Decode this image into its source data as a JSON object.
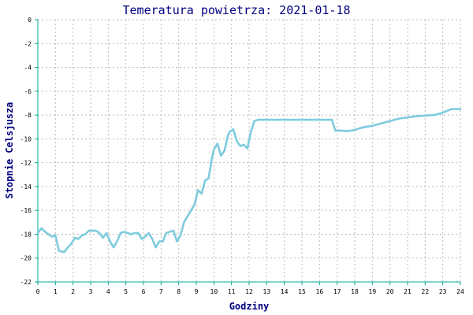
{
  "chart_data": {
    "type": "line",
    "title": "Temeratura powietrza: 2021-01-18",
    "xlabel": "Godziny",
    "ylabel": "Stopnie Celsjusza",
    "xlim": [
      0,
      24
    ],
    "ylim": [
      -22,
      0
    ],
    "x_ticks": [
      0,
      1,
      2,
      3,
      4,
      5,
      6,
      7,
      8,
      9,
      10,
      11,
      12,
      13,
      14,
      15,
      16,
      17,
      18,
      19,
      20,
      21,
      22,
      23,
      24
    ],
    "y_ticks": [
      0,
      -2,
      -4,
      -6,
      -8,
      -10,
      -12,
      -14,
      -16,
      -18,
      -20,
      -22
    ],
    "grid": true,
    "line_color": "#7ecbdf",
    "axis_color": "#00a89a",
    "title_color": "#000080",
    "series": [
      {
        "x": [
          0,
          0.2,
          0.5,
          0.8,
          1.0,
          1.2,
          1.5,
          1.7,
          1.9,
          2.1,
          2.3,
          2.5,
          2.7,
          2.9,
          3.1,
          3.3,
          3.5,
          3.7,
          3.9,
          4.1,
          4.3,
          4.5,
          4.7,
          4.9,
          5.1,
          5.3,
          5.5,
          5.7,
          5.9,
          6.1,
          6.3,
          6.5,
          6.7,
          6.9,
          7.1,
          7.3,
          7.5,
          7.7,
          7.9,
          8.1,
          8.3,
          8.5,
          8.7,
          8.9,
          9.1,
          9.3,
          9.5,
          9.7,
          9.9,
          10.0,
          10.2,
          10.4,
          10.6,
          10.8,
          10.9,
          11.1,
          11.3,
          11.5,
          11.7,
          11.9,
          12.1,
          12.3,
          12.5,
          12.7,
          12.9,
          13.0,
          13.5,
          14,
          15,
          16,
          16.5,
          16.7,
          16.9,
          17.2,
          17.5,
          17.8,
          18,
          18.3,
          18.6,
          19,
          19.5,
          20,
          20.5,
          21,
          21.5,
          22,
          22.5,
          23,
          23.5,
          24
        ],
        "y": [
          -17.9,
          -17.5,
          -17.9,
          -18.2,
          -18.1,
          -19.4,
          -19.5,
          -19.1,
          -18.8,
          -18.3,
          -18.4,
          -18.1,
          -18.0,
          -17.7,
          -17.7,
          -17.7,
          -17.9,
          -18.3,
          -17.9,
          -18.6,
          -19.1,
          -18.6,
          -17.9,
          -17.8,
          -17.9,
          -18.0,
          -17.9,
          -17.9,
          -18.4,
          -18.2,
          -17.9,
          -18.4,
          -19.1,
          -18.6,
          -18.6,
          -17.9,
          -17.8,
          -17.7,
          -18.6,
          -18.1,
          -17.0,
          -16.5,
          -16.0,
          -15.5,
          -14.3,
          -14.6,
          -13.5,
          -13.3,
          -11.5,
          -10.9,
          -10.4,
          -11.4,
          -11.0,
          -9.7,
          -9.4,
          -9.2,
          -10.2,
          -10.6,
          -10.5,
          -10.8,
          -9.4,
          -8.5,
          -8.4,
          -8.4,
          -8.4,
          -8.4,
          -8.4,
          -8.4,
          -8.4,
          -8.4,
          -8.4,
          -8.4,
          -9.3,
          -9.3,
          -9.35,
          -9.3,
          -9.25,
          -9.1,
          -9.0,
          -8.9,
          -8.7,
          -8.5,
          -8.3,
          -8.2,
          -8.1,
          -8.05,
          -8.0,
          -7.8,
          -7.5,
          -7.5
        ]
      }
    ]
  }
}
